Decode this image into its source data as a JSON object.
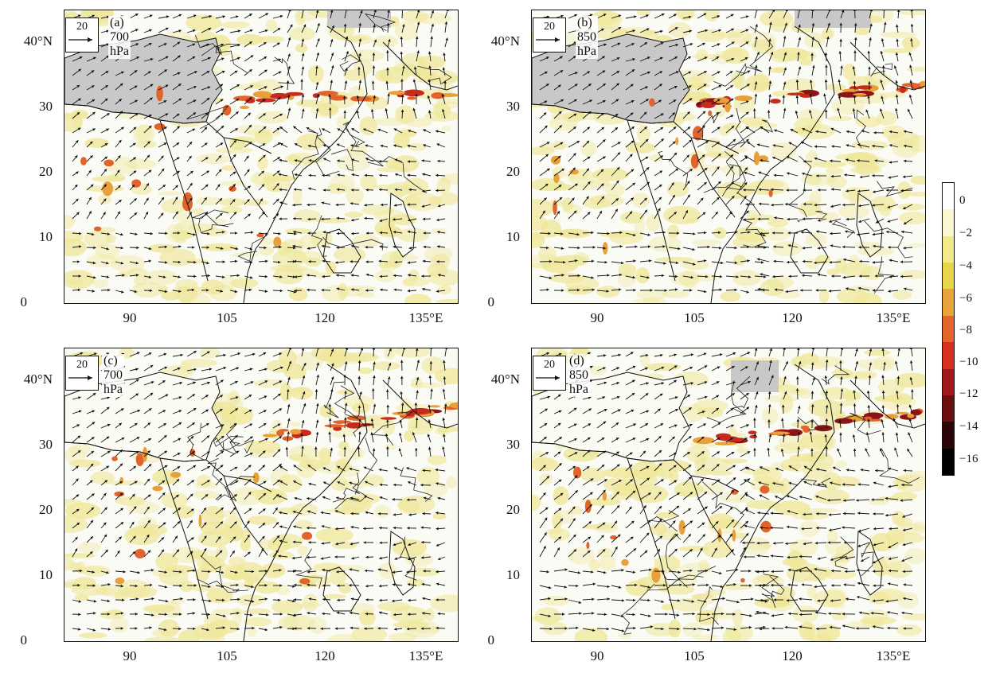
{
  "panels": [
    {
      "id": "a",
      "title": "(a) 700 hPa",
      "ref_vector": "20"
    },
    {
      "id": "b",
      "title": "(b) 850 hPa",
      "ref_vector": "20"
    },
    {
      "id": "c",
      "title": "(c) 700 hPa",
      "ref_vector": "20"
    },
    {
      "id": "d",
      "title": "(d) 850 hPa",
      "ref_vector": "20"
    }
  ],
  "lat_labels": [
    "40°N",
    "30",
    "20",
    "10",
    "0"
  ],
  "lon_labels": [
    "90",
    "105",
    "120",
    "135°E"
  ],
  "colorbar": {
    "ticks": [
      "0",
      "−2",
      "−4",
      "−6",
      "−8",
      "−10",
      "−12",
      "−14",
      "−16"
    ],
    "colors": [
      "#ffffff",
      "#fbf6cf",
      "#f2ea8a",
      "#e8d54a",
      "#eaa23a",
      "#e4642e",
      "#d8301f",
      "#a3181a",
      "#6b0f10",
      "#2c0606",
      "#000000"
    ]
  },
  "colors": {
    "plateau_gray": "#c8c8c8",
    "field_yellow": "#efe79a",
    "frame": "#111111"
  }
}
